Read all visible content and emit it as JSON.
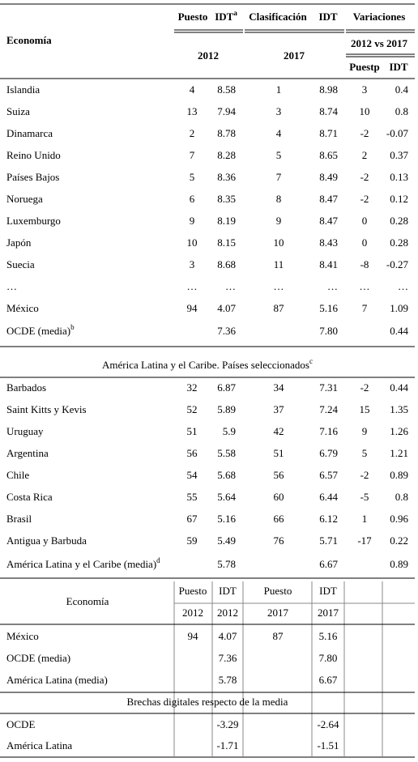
{
  "top_table": {
    "header": {
      "economy": "Economía",
      "rank": "Puesto",
      "idt": "IDT",
      "idt_note": "a",
      "classification": "Clasificación",
      "idt_2017": "IDT",
      "variations": "Variaciones",
      "year_2012": "2012",
      "year_2017": "2017",
      "period": "2012 vs 2017",
      "var_rank": "Puestp",
      "var_idt": "IDT"
    },
    "rows": [
      [
        "Islandia",
        "4",
        "8.58",
        "1",
        "8.98",
        "3",
        "0.4"
      ],
      [
        "Suiza",
        "13",
        "7.94",
        "3",
        "8.74",
        "10",
        "0.8"
      ],
      [
        "Dinamarca",
        "2",
        "8.78",
        "4",
        "8.71",
        "-2",
        "-0.07"
      ],
      [
        "Reino Unido",
        "7",
        "8.28",
        "5",
        "8.65",
        "2",
        "0.37"
      ],
      [
        "Países Bajos",
        "5",
        "8.36",
        "7",
        "8.49",
        "-2",
        "0.13"
      ],
      [
        "Noruega",
        "6",
        "8.35",
        "8",
        "8.47",
        "-2",
        "0.12"
      ],
      [
        "Luxemburgo",
        "9",
        "8.19",
        "9",
        "8.47",
        "0",
        "0.28"
      ],
      [
        "Japón",
        "10",
        "8.15",
        "10",
        "8.43",
        "0",
        "0.28"
      ],
      [
        "Suecia",
        "3",
        "8.68",
        "11",
        "8.41",
        "-8",
        "-0.27"
      ],
      [
        "…",
        "…",
        "…",
        "…",
        "…",
        "…",
        "…"
      ],
      [
        "México",
        "94",
        "4.07",
        "87",
        "5.16",
        "7",
        "1.09"
      ]
    ],
    "oecd": {
      "label": "OCDE (media)",
      "note": "b",
      "idt_2012": "7.36",
      "idt_2017": "7.80",
      "var_idt": "0.44"
    },
    "section": {
      "label": "América Latina y el Caribe. Países seleccionados",
      "note": "c"
    },
    "latam_rows": [
      [
        "Barbados",
        "32",
        "6.87",
        "34",
        "7.31",
        "-2",
        "0.44"
      ],
      [
        "Saint Kitts y Kevis",
        "52",
        "5.89",
        "37",
        "7.24",
        "15",
        "1.35"
      ],
      [
        "Uruguay",
        "51",
        "5.9",
        "42",
        "7.16",
        "9",
        "1.26"
      ],
      [
        "Argentina",
        "56",
        "5.58",
        "51",
        "6.79",
        "5",
        "1.21"
      ],
      [
        "Chile",
        "54",
        "5.68",
        "56",
        "6.57",
        "-2",
        "0.89"
      ],
      [
        "Costa Rica",
        "55",
        "5.64",
        "60",
        "6.44",
        "-5",
        "0.8"
      ],
      [
        "Brasil",
        "67",
        "5.16",
        "66",
        "6.12",
        "1",
        "0.96"
      ],
      [
        "Antigua y Barbuda",
        "59",
        "5.49",
        "76",
        "5.71",
        "-17",
        "0.22"
      ]
    ],
    "latam_avg": {
      "label": "América Latina y el Caribe (media)",
      "note": "d",
      "idt_2012": "5.78",
      "idt_2017": "6.67",
      "var_idt": "0.89"
    }
  },
  "bottom_table": {
    "header": {
      "economy": "Economía",
      "columns": [
        "Puesto",
        "IDT",
        "Puesto",
        "IDT"
      ],
      "years": [
        "2012",
        "2012",
        "2017",
        "2017"
      ]
    },
    "rows": [
      [
        "México",
        "94",
        "4.07",
        "87",
        "5.16"
      ],
      [
        "OCDE (media)",
        null,
        "7.36",
        null,
        "7.80"
      ],
      [
        "América Latina (media)",
        null,
        "5.78",
        null,
        "6.67"
      ]
    ],
    "gap_title": "Brechas digitales respecto de la media",
    "gap_rows": [
      [
        "OCDE",
        "-3.29",
        "-2.64"
      ],
      [
        "América Latina",
        "-1.71",
        "-1.51"
      ]
    ]
  }
}
